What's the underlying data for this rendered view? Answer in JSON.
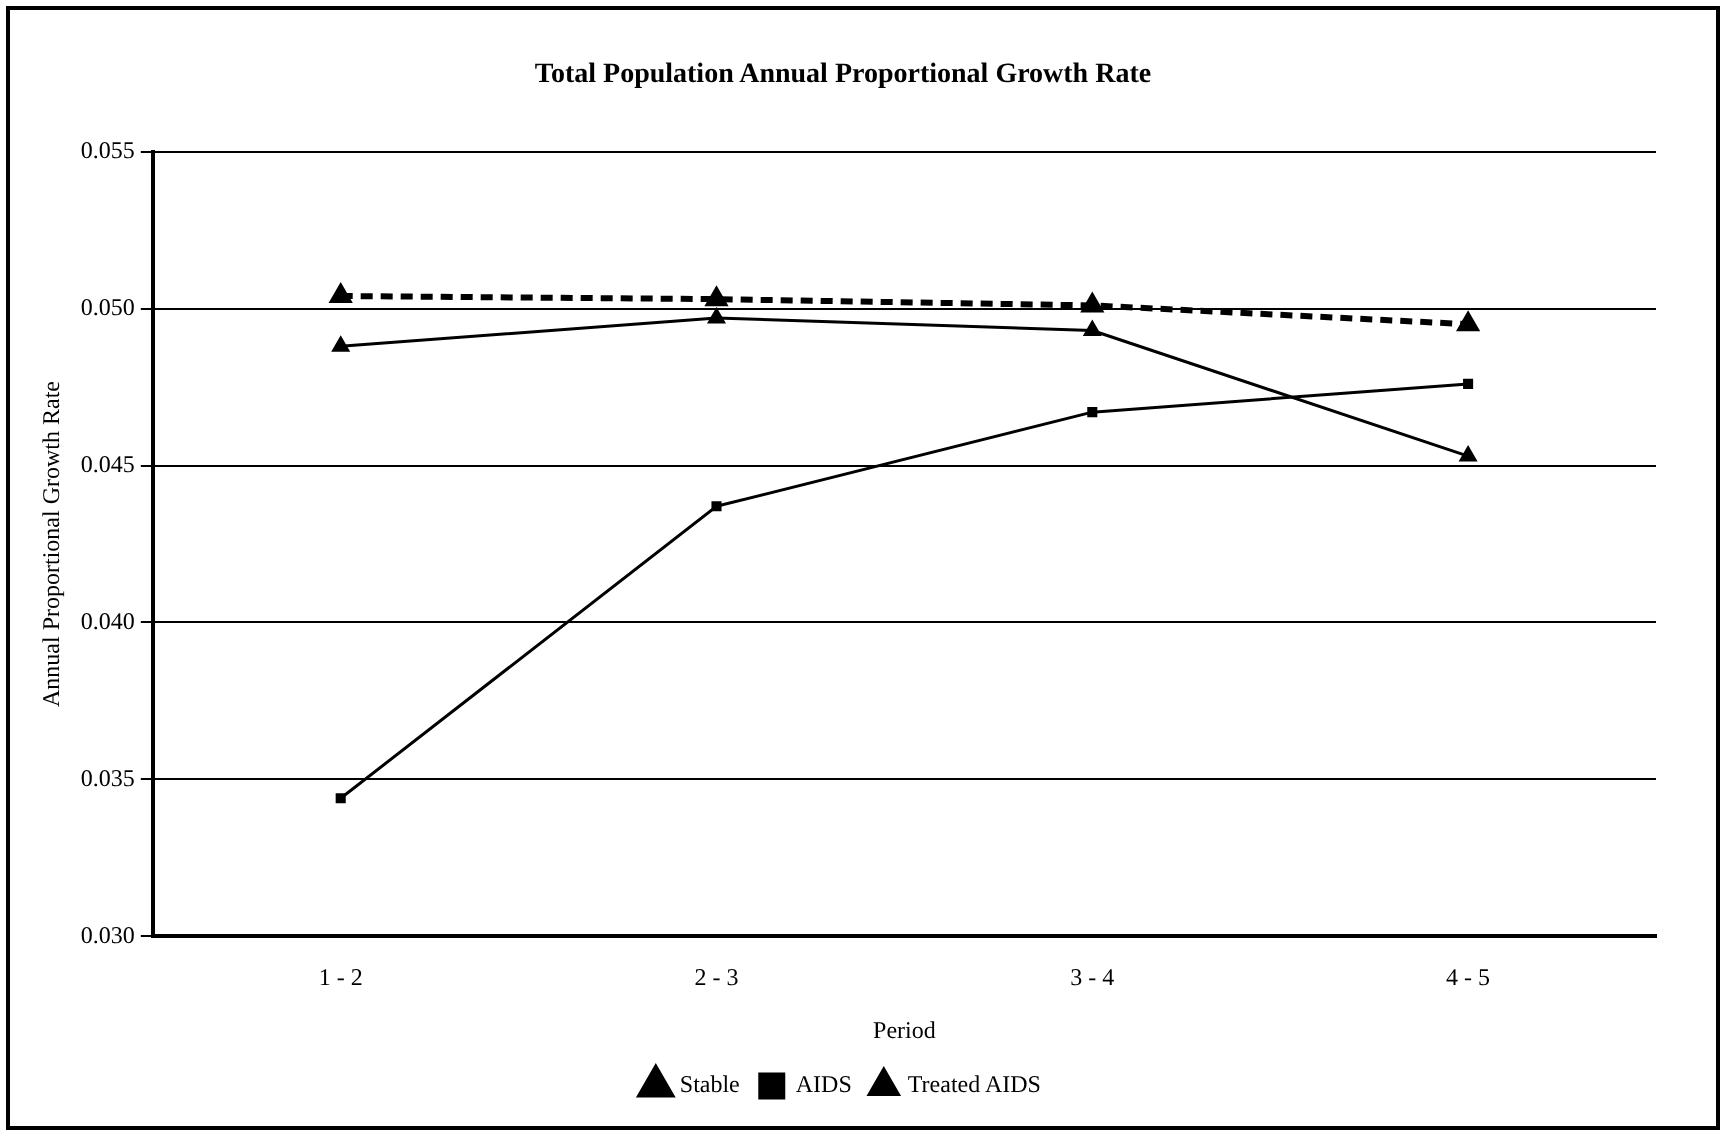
{
  "chart_data": {
    "type": "line",
    "title": "Total Population Annual Proportional Growth Rate",
    "xlabel": "Period",
    "ylabel": "Annual Proportional Growth Rate",
    "categories": [
      "1 - 2",
      "2 - 3",
      "3 - 4",
      "4 - 5"
    ],
    "series": [
      {
        "name": "Stable",
        "color": "#000000",
        "values": [
          0.0504,
          0.0503,
          0.0501,
          0.0495
        ],
        "marker": "triangle",
        "line_style": "dashed"
      },
      {
        "name": "AIDS",
        "color": "#000000",
        "values": [
          0.0344,
          0.0437,
          0.0467,
          0.0476
        ],
        "marker": "square",
        "line_style": "solid"
      },
      {
        "name": "Treated AIDS",
        "color": "#000000",
        "values": [
          0.0488,
          0.0497,
          0.0493,
          0.0453
        ],
        "marker": "triangle",
        "line_style": "solid"
      }
    ],
    "ylim": [
      0.03,
      0.055
    ],
    "yticks": [
      {
        "value": 0.03,
        "label": "0.030"
      },
      0.035,
      {
        "value": 0.04,
        "label": "0.040"
      },
      0.045,
      {
        "value": 0.05,
        "label": "0.050"
      },
      0.055
    ],
    "grid": "y",
    "legend": "bottom"
  }
}
